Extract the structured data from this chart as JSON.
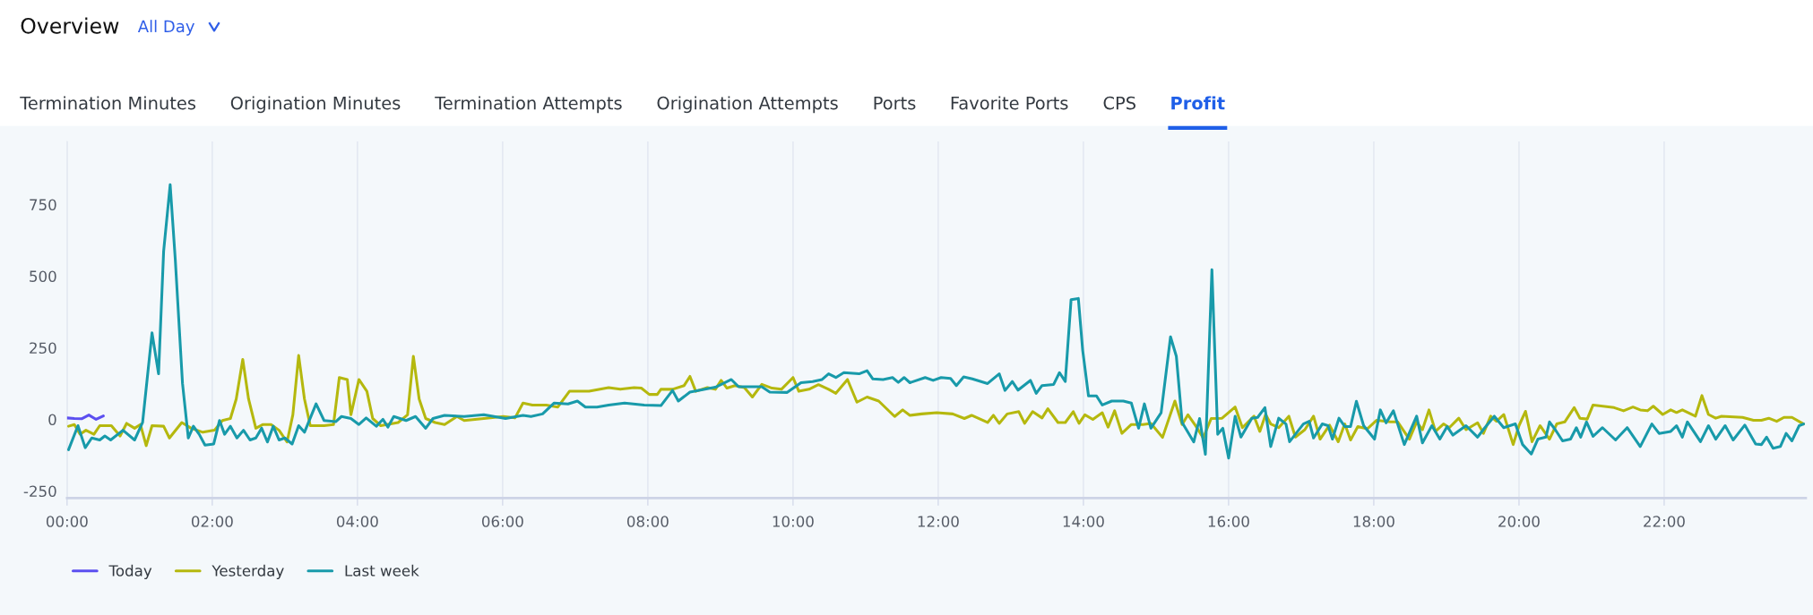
{
  "chart_data": {
    "type": "line",
    "title": "Overview",
    "subtitle": "All Day",
    "annotations": [
      "Termination Minutes",
      "Origination Minutes",
      "Termination Attempts",
      "Origination Attempts",
      "Ports",
      "Favorite Ports",
      "CPS",
      "Profit"
    ],
    "xlim": [
      0,
      23.95
    ],
    "ylim": [
      -275,
      970
    ],
    "xticks": [
      {
        "value": 0,
        "label": "00:00"
      },
      {
        "value": 2,
        "label": "02:00"
      },
      {
        "value": 4,
        "label": "04:00"
      },
      {
        "value": 6,
        "label": "06:00"
      },
      {
        "value": 8,
        "label": "08:00"
      },
      {
        "value": 10,
        "label": "10:00"
      },
      {
        "value": 12,
        "label": "12:00"
      },
      {
        "value": 14,
        "label": "14:00"
      },
      {
        "value": 16,
        "label": "16:00"
      },
      {
        "value": 18,
        "label": "18:00"
      },
      {
        "value": 20,
        "label": "20:00"
      },
      {
        "value": 22,
        "label": "22:00"
      }
    ],
    "yticks": [
      -250,
      0,
      250,
      500,
      750
    ],
    "grid": "x",
    "legend": "bottom left",
    "marker": "none",
    "line_style": "solid",
    "series": [
      {
        "name": "Today",
        "color": "#5b4ff0",
        "x": [
          0,
          0.1,
          0.2,
          0.3,
          0.4,
          0.5
        ],
        "values": [
          5,
          3,
          2,
          15,
          0,
          12
        ]
      },
      {
        "name": "Yesterday",
        "color": "#b5b80e",
        "x": [
          0.02,
          0.1,
          0.18,
          0.26,
          0.37,
          0.45,
          0.61,
          0.73,
          0.82,
          0.93,
          1.01,
          1.09,
          1.17,
          1.33,
          1.41,
          1.58,
          1.71,
          1.87,
          2.03,
          2.14,
          2.25,
          2.33,
          2.42,
          2.5,
          2.6,
          2.7,
          2.81,
          2.92,
          3.03,
          3.11,
          3.19,
          3.27,
          3.35,
          3.54,
          3.67,
          3.75,
          3.86,
          3.91,
          4.02,
          4.13,
          4.21,
          4.32,
          4.56,
          4.69,
          4.77,
          4.85,
          4.94,
          5.07,
          5.2,
          5.37,
          5.47,
          5.74,
          6.01,
          6.17,
          6.28,
          6.41,
          6.6,
          6.76,
          6.92,
          7.19,
          7.46,
          7.62,
          7.81,
          7.91,
          8.02,
          8.13,
          8.18,
          8.34,
          8.5,
          8.58,
          8.66,
          8.82,
          8.93,
          9.01,
          9.09,
          9.2,
          9.33,
          9.44,
          9.57,
          9.71,
          9.84,
          10.0,
          10.08,
          10.22,
          10.35,
          10.49,
          10.59,
          10.75,
          10.88,
          11.02,
          11.18,
          11.4,
          11.51,
          11.61,
          11.77,
          11.98,
          12.2,
          12.36,
          12.46,
          12.68,
          12.76,
          12.84,
          12.95,
          13.11,
          13.19,
          13.3,
          13.43,
          13.51,
          13.65,
          13.75,
          13.86,
          13.94,
          14.02,
          14.13,
          14.26,
          14.34,
          14.43,
          14.53,
          14.66,
          14.82,
          14.93,
          15.09,
          15.26,
          15.36,
          15.44,
          15.55,
          15.65,
          15.76,
          15.91,
          16.09,
          16.19,
          16.35,
          16.43,
          16.51,
          16.58,
          16.69,
          16.83,
          16.92,
          17.05,
          17.17,
          17.26,
          17.39,
          17.51,
          17.6,
          17.68,
          17.78,
          17.91,
          18.04,
          18.23,
          18.33,
          18.49,
          18.59,
          18.67,
          18.76,
          18.85,
          18.96,
          19.04,
          19.17,
          19.27,
          19.43,
          19.51,
          19.61,
          19.69,
          19.79,
          19.92,
          20.0,
          20.09,
          20.18,
          20.29,
          20.42,
          20.52,
          20.63,
          20.76,
          20.84,
          20.94,
          21.02,
          21.31,
          21.44,
          21.57,
          21.67,
          21.77,
          21.85,
          21.98,
          22.09,
          22.17,
          22.25,
          22.43,
          22.52,
          22.61,
          22.71,
          22.79,
          23.08,
          23.23,
          23.34,
          23.44,
          23.55,
          23.65,
          23.76,
          23.92
        ],
        "values": [
          -24,
          -18,
          -52,
          -38,
          -52,
          -22,
          -22,
          -58,
          -14,
          -31,
          -18,
          -92,
          -22,
          -24,
          -65,
          -11,
          -31,
          -45,
          -38,
          -4,
          3,
          71,
          209,
          71,
          -31,
          -18,
          -18,
          -38,
          -79,
          16,
          223,
          71,
          -22,
          -22,
          -18,
          146,
          139,
          16,
          139,
          98,
          3,
          -22,
          -11,
          16,
          220,
          71,
          3,
          -11,
          -18,
          10,
          -4,
          3,
          10,
          5,
          57,
          50,
          50,
          43,
          98,
          98,
          111,
          105,
          111,
          109,
          87,
          87,
          105,
          105,
          118,
          150,
          98,
          111,
          105,
          136,
          109,
          118,
          111,
          78,
          122,
          109,
          105,
          146,
          98,
          105,
          121,
          105,
          91,
          139,
          60,
          78,
          64,
          10,
          33,
          14,
          19,
          23,
          19,
          3,
          14,
          -11,
          14,
          -14,
          19,
          27,
          -14,
          27,
          5,
          37,
          -11,
          -11,
          27,
          -14,
          16,
          0,
          23,
          -27,
          30,
          -49,
          -18,
          -18,
          -14,
          -63,
          64,
          -18,
          16,
          -24,
          -65,
          3,
          4,
          43,
          -29,
          11,
          -42,
          17,
          -16,
          -29,
          11,
          -62,
          -36,
          11,
          -69,
          -20,
          -78,
          -16,
          -72,
          -25,
          -33,
          -3,
          -9,
          -9,
          -69,
          -9,
          -36,
          33,
          -42,
          -16,
          -29,
          4,
          -36,
          -12,
          -49,
          11,
          -7,
          17,
          -88,
          -22,
          28,
          -78,
          -22,
          -69,
          -16,
          -9,
          41,
          4,
          1,
          50,
          41,
          30,
          43,
          33,
          30,
          46,
          17,
          33,
          24,
          33,
          11,
          83,
          17,
          4,
          11,
          7,
          -3,
          -3,
          4,
          -7,
          7,
          7,
          -16
        ]
      },
      {
        "name": "Last week",
        "color": "#189aaa",
        "x": [
          0.02,
          0.15,
          0.25,
          0.34,
          0.45,
          0.52,
          0.6,
          0.77,
          0.93,
          1.04,
          1.17,
          1.26,
          1.33,
          1.42,
          1.49,
          1.59,
          1.67,
          1.74,
          1.82,
          1.9,
          2.02,
          2.1,
          2.17,
          2.25,
          2.34,
          2.43,
          2.52,
          2.6,
          2.68,
          2.76,
          2.84,
          2.92,
          3.0,
          3.1,
          3.19,
          3.27,
          3.43,
          3.54,
          3.7,
          3.78,
          3.91,
          4.02,
          4.12,
          4.26,
          4.35,
          4.42,
          4.5,
          4.67,
          4.8,
          4.94,
          5.04,
          5.2,
          5.47,
          5.74,
          6.04,
          6.28,
          6.39,
          6.55,
          6.71,
          6.9,
          7.03,
          7.14,
          7.3,
          7.46,
          7.68,
          7.95,
          8.18,
          8.34,
          8.42,
          8.58,
          8.93,
          9.15,
          9.25,
          9.41,
          9.57,
          9.68,
          9.92,
          10.11,
          10.27,
          10.4,
          10.49,
          10.59,
          10.7,
          10.91,
          11.02,
          11.1,
          11.24,
          11.37,
          11.45,
          11.53,
          11.61,
          11.82,
          11.93,
          12.04,
          12.17,
          12.25,
          12.35,
          12.47,
          12.68,
          12.84,
          12.92,
          13.02,
          13.1,
          13.27,
          13.35,
          13.43,
          13.59,
          13.67,
          13.75,
          13.83,
          13.93,
          13.99,
          14.07,
          14.18,
          14.26,
          14.39,
          14.55,
          14.66,
          14.76,
          14.84,
          14.93,
          15.07,
          15.2,
          15.28,
          15.36,
          15.52,
          15.6,
          15.68,
          15.77,
          15.85,
          15.92,
          16.0,
          16.09,
          16.17,
          16.32,
          16.4,
          16.5,
          16.58,
          16.69,
          16.79,
          16.84,
          17.03,
          17.11,
          17.17,
          17.29,
          17.37,
          17.43,
          17.52,
          17.6,
          17.68,
          17.76,
          17.86,
          18.01,
          18.09,
          18.17,
          18.27,
          18.42,
          18.59,
          18.67,
          18.8,
          18.91,
          19.01,
          19.09,
          19.27,
          19.43,
          19.53,
          19.66,
          19.79,
          19.95,
          20.05,
          20.17,
          20.26,
          20.37,
          20.42,
          20.5,
          20.6,
          20.71,
          20.79,
          20.85,
          20.93,
          21.02,
          21.15,
          21.33,
          21.49,
          21.67,
          21.83,
          21.93,
          22.09,
          22.17,
          22.25,
          22.32,
          22.5,
          22.61,
          22.71,
          22.84,
          22.95,
          23.11,
          23.26,
          23.34,
          23.41,
          23.5,
          23.6,
          23.68,
          23.76,
          23.86,
          23.92
        ],
        "values": [
          -106,
          -22,
          -99,
          -65,
          -72,
          -58,
          -72,
          -38,
          -72,
          -11,
          302,
          159,
          587,
          819,
          560,
          125,
          -65,
          -24,
          -52,
          -90,
          -86,
          -4,
          -52,
          -24,
          -65,
          -38,
          -72,
          -65,
          -31,
          -79,
          -24,
          -72,
          -65,
          -86,
          -22,
          -45,
          54,
          -4,
          -8,
          10,
          3,
          -18,
          5,
          -24,
          0,
          -27,
          10,
          -4,
          10,
          -31,
          3,
          14,
          10,
          16,
          3,
          14,
          10,
          19,
          57,
          54,
          64,
          43,
          43,
          50,
          57,
          50,
          48,
          101,
          64,
          95,
          112,
          139,
          114,
          114,
          114,
          95,
          94,
          128,
          132,
          139,
          159,
          146,
          163,
          159,
          170,
          141,
          139,
          146,
          129,
          146,
          128,
          146,
          136,
          146,
          143,
          118,
          148,
          141,
          125,
          159,
          101,
          132,
          102,
          136,
          91,
          118,
          122,
          163,
          132,
          418,
          422,
          241,
          82,
          82,
          50,
          64,
          64,
          57,
          -31,
          54,
          -31,
          23,
          288,
          220,
          -11,
          -79,
          3,
          -122,
          522,
          -52,
          -31,
          -135,
          11,
          -62,
          4,
          7,
          41,
          -95,
          4,
          -16,
          -78,
          -16,
          -7,
          -65,
          -16,
          -22,
          -69,
          4,
          -25,
          -25,
          63,
          -22,
          -69,
          33,
          -12,
          30,
          -88,
          11,
          -82,
          -22,
          -69,
          -25,
          -55,
          -22,
          -62,
          -29,
          11,
          -29,
          -16,
          -88,
          -121,
          -69,
          -62,
          -9,
          -36,
          -75,
          -69,
          -29,
          -62,
          -9,
          -59,
          -29,
          -72,
          -29,
          -95,
          -16,
          -49,
          -42,
          -22,
          -62,
          -9,
          -78,
          -22,
          -69,
          -22,
          -72,
          -20,
          -86,
          -88,
          -62,
          -101,
          -95,
          -49,
          -75,
          -22,
          -16
        ]
      }
    ]
  }
}
